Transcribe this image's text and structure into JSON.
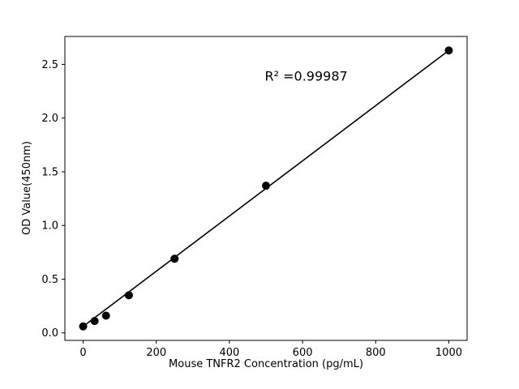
{
  "chart_data": {
    "type": "scatter",
    "title": "",
    "xlabel": "Mouse TNFR2 Concentration (pg/mL)",
    "ylabel": "OD Value(450nm)",
    "x": [
      0,
      31.25,
      62.5,
      125,
      250,
      500,
      1000
    ],
    "y": [
      0.06,
      0.11,
      0.16,
      0.35,
      0.69,
      1.37,
      2.63
    ],
    "fit_line": {
      "x": [
        0,
        1000
      ],
      "y": [
        0.06,
        2.63
      ]
    },
    "annotation": {
      "text": "R² =0.99987",
      "x": 610,
      "y": 2.35
    },
    "xlim": [
      -50,
      1050
    ],
    "ylim": [
      -0.07,
      2.76
    ],
    "x_ticks": [
      0,
      200,
      400,
      600,
      800,
      1000
    ],
    "y_ticks": [
      0.0,
      0.5,
      1.0,
      1.5,
      2.0,
      2.5
    ],
    "grid": false,
    "legend": false,
    "marker_color": "#000000",
    "line_color": "#000000",
    "axis_color": "#000000",
    "background": "#ffffff"
  }
}
